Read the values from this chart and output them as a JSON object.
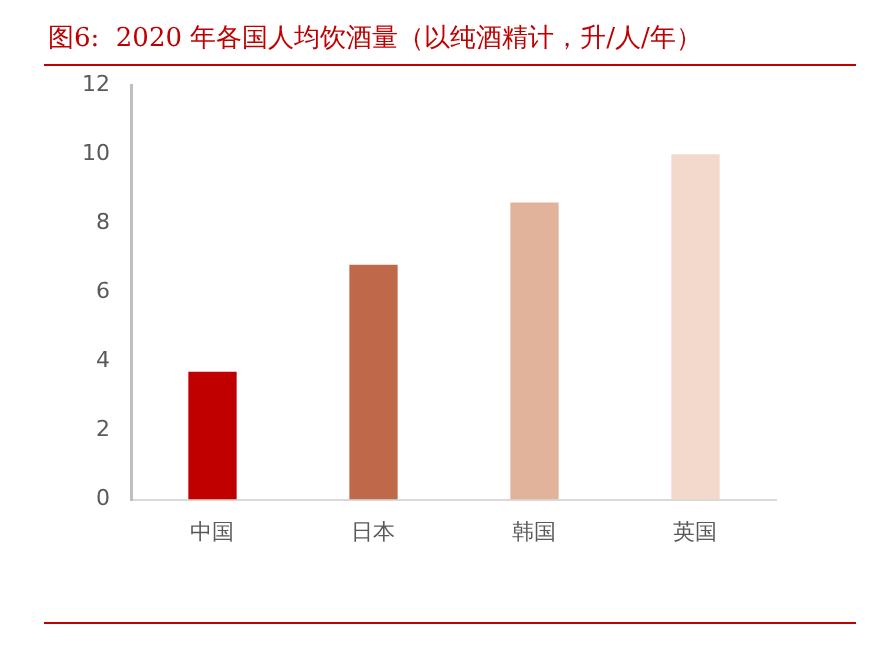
{
  "chart_data": {
    "type": "bar",
    "title": "图6:  2020 年各国人均饮酒量（以纯酒精计，升/人/年）",
    "categories": [
      "中国",
      "日本",
      "韩国",
      "英国"
    ],
    "values": [
      3.7,
      6.8,
      8.6,
      10.0
    ],
    "colors": [
      "#c00000",
      "#c0694a",
      "#e2b39b",
      "#f2d9cb"
    ],
    "ylim": [
      0,
      12
    ],
    "yticks": [
      0,
      2,
      4,
      6,
      8,
      10,
      12
    ],
    "grid": false
  }
}
